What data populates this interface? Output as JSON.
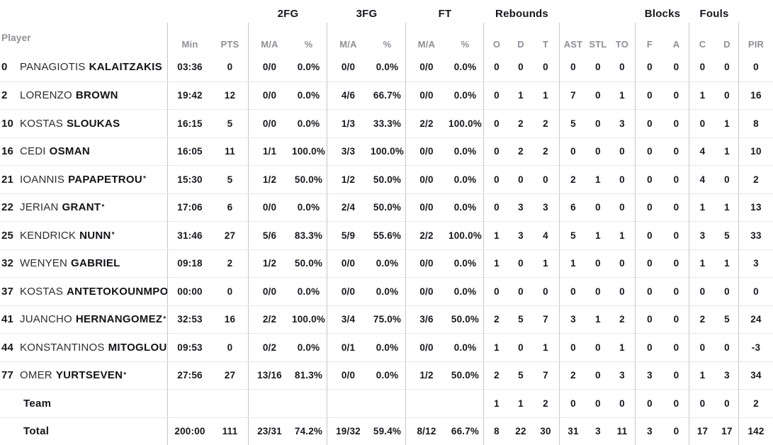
{
  "table": {
    "player_header": "Player",
    "group_headers": {
      "fg2": "2FG",
      "fg3": "3FG",
      "ft": "FT",
      "rebounds": "Rebounds",
      "blocks": "Blocks",
      "fouls": "Fouls"
    },
    "sub_headers": {
      "min": "Min",
      "pts": "PTS",
      "ma": "M/A",
      "pct": "%",
      "o": "O",
      "d": "D",
      "t": "T",
      "ast": "AST",
      "stl": "STL",
      "to": "TO",
      "f": "F",
      "a": "A",
      "c": "C",
      "pir": "PIR"
    }
  },
  "rows": [
    {
      "num": "0",
      "first": "PANAGIOTIS",
      "last": "KALAITZAKIS",
      "star": "",
      "min": "03:36",
      "pts": "0",
      "fg2ma": "0/0",
      "fg2pct": "0.0%",
      "fg3ma": "0/0",
      "fg3pct": "0.0%",
      "ftma": "0/0",
      "ftpct": "0.0%",
      "reb_o": "0",
      "reb_d": "0",
      "reb_t": "0",
      "ast": "0",
      "stl": "0",
      "to": "0",
      "blk_f": "0",
      "blk_a": "0",
      "foul_c": "0",
      "foul_d": "0",
      "pir": "0"
    },
    {
      "num": "2",
      "first": "LORENZO",
      "last": "BROWN",
      "star": "",
      "min": "19:42",
      "pts": "12",
      "fg2ma": "0/0",
      "fg2pct": "0.0%",
      "fg3ma": "4/6",
      "fg3pct": "66.7%",
      "ftma": "0/0",
      "ftpct": "0.0%",
      "reb_o": "0",
      "reb_d": "1",
      "reb_t": "1",
      "ast": "7",
      "stl": "0",
      "to": "1",
      "blk_f": "0",
      "blk_a": "0",
      "foul_c": "1",
      "foul_d": "0",
      "pir": "16"
    },
    {
      "num": "10",
      "first": "KOSTAS",
      "last": "SLOUKAS",
      "star": "",
      "min": "16:15",
      "pts": "5",
      "fg2ma": "0/0",
      "fg2pct": "0.0%",
      "fg3ma": "1/3",
      "fg3pct": "33.3%",
      "ftma": "2/2",
      "ftpct": "100.0%",
      "reb_o": "0",
      "reb_d": "2",
      "reb_t": "2",
      "ast": "5",
      "stl": "0",
      "to": "3",
      "blk_f": "0",
      "blk_a": "0",
      "foul_c": "0",
      "foul_d": "1",
      "pir": "8"
    },
    {
      "num": "16",
      "first": "CEDI",
      "last": "OSMAN",
      "star": "",
      "min": "16:05",
      "pts": "11",
      "fg2ma": "1/1",
      "fg2pct": "100.0%",
      "fg3ma": "3/3",
      "fg3pct": "100.0%",
      "ftma": "0/0",
      "ftpct": "0.0%",
      "reb_o": "0",
      "reb_d": "2",
      "reb_t": "2",
      "ast": "0",
      "stl": "0",
      "to": "0",
      "blk_f": "0",
      "blk_a": "0",
      "foul_c": "4",
      "foul_d": "1",
      "pir": "10"
    },
    {
      "num": "21",
      "first": "IOANNIS",
      "last": "PAPAPETROU",
      "star": "*",
      "min": "15:30",
      "pts": "5",
      "fg2ma": "1/2",
      "fg2pct": "50.0%",
      "fg3ma": "1/2",
      "fg3pct": "50.0%",
      "ftma": "0/0",
      "ftpct": "0.0%",
      "reb_o": "0",
      "reb_d": "0",
      "reb_t": "0",
      "ast": "2",
      "stl": "1",
      "to": "0",
      "blk_f": "0",
      "blk_a": "0",
      "foul_c": "4",
      "foul_d": "0",
      "pir": "2"
    },
    {
      "num": "22",
      "first": "JERIAN",
      "last": "GRANT",
      "star": "*",
      "min": "17:06",
      "pts": "6",
      "fg2ma": "0/0",
      "fg2pct": "0.0%",
      "fg3ma": "2/4",
      "fg3pct": "50.0%",
      "ftma": "0/0",
      "ftpct": "0.0%",
      "reb_o": "0",
      "reb_d": "3",
      "reb_t": "3",
      "ast": "6",
      "stl": "0",
      "to": "0",
      "blk_f": "0",
      "blk_a": "0",
      "foul_c": "1",
      "foul_d": "1",
      "pir": "13"
    },
    {
      "num": "25",
      "first": "KENDRICK",
      "last": "NUNN",
      "star": "*",
      "min": "31:46",
      "pts": "27",
      "fg2ma": "5/6",
      "fg2pct": "83.3%",
      "fg3ma": "5/9",
      "fg3pct": "55.6%",
      "ftma": "2/2",
      "ftpct": "100.0%",
      "reb_o": "1",
      "reb_d": "3",
      "reb_t": "4",
      "ast": "5",
      "stl": "1",
      "to": "1",
      "blk_f": "0",
      "blk_a": "0",
      "foul_c": "3",
      "foul_d": "5",
      "pir": "33"
    },
    {
      "num": "32",
      "first": "WENYEN",
      "last": "GABRIEL",
      "star": "",
      "min": "09:18",
      "pts": "2",
      "fg2ma": "1/2",
      "fg2pct": "50.0%",
      "fg3ma": "0/0",
      "fg3pct": "0.0%",
      "ftma": "0/0",
      "ftpct": "0.0%",
      "reb_o": "1",
      "reb_d": "0",
      "reb_t": "1",
      "ast": "1",
      "stl": "0",
      "to": "0",
      "blk_f": "0",
      "blk_a": "0",
      "foul_c": "1",
      "foul_d": "1",
      "pir": "3"
    },
    {
      "num": "37",
      "first": "KOSTAS",
      "last": "ANTETOKOUNMPO",
      "star": "",
      "min": "00:00",
      "pts": "0",
      "fg2ma": "0/0",
      "fg2pct": "0.0%",
      "fg3ma": "0/0",
      "fg3pct": "0.0%",
      "ftma": "0/0",
      "ftpct": "0.0%",
      "reb_o": "0",
      "reb_d": "0",
      "reb_t": "0",
      "ast": "0",
      "stl": "0",
      "to": "0",
      "blk_f": "0",
      "blk_a": "0",
      "foul_c": "0",
      "foul_d": "0",
      "pir": "0"
    },
    {
      "num": "41",
      "first": "JUANCHO",
      "last": "HERNANGOMEZ",
      "star": "*",
      "min": "32:53",
      "pts": "16",
      "fg2ma": "2/2",
      "fg2pct": "100.0%",
      "fg3ma": "3/4",
      "fg3pct": "75.0%",
      "ftma": "3/6",
      "ftpct": "50.0%",
      "reb_o": "2",
      "reb_d": "5",
      "reb_t": "7",
      "ast": "3",
      "stl": "1",
      "to": "2",
      "blk_f": "0",
      "blk_a": "0",
      "foul_c": "2",
      "foul_d": "5",
      "pir": "24"
    },
    {
      "num": "44",
      "first": "KONSTANTINOS",
      "last": "MITOGLOU",
      "star": "",
      "min": "09:53",
      "pts": "0",
      "fg2ma": "0/2",
      "fg2pct": "0.0%",
      "fg3ma": "0/1",
      "fg3pct": "0.0%",
      "ftma": "0/0",
      "ftpct": "0.0%",
      "reb_o": "1",
      "reb_d": "0",
      "reb_t": "1",
      "ast": "0",
      "stl": "0",
      "to": "1",
      "blk_f": "0",
      "blk_a": "0",
      "foul_c": "0",
      "foul_d": "0",
      "pir": "-3"
    },
    {
      "num": "77",
      "first": "OMER",
      "last": "YURTSEVEN",
      "star": "*",
      "min": "27:56",
      "pts": "27",
      "fg2ma": "13/16",
      "fg2pct": "81.3%",
      "fg3ma": "0/0",
      "fg3pct": "0.0%",
      "ftma": "1/2",
      "ftpct": "50.0%",
      "reb_o": "2",
      "reb_d": "5",
      "reb_t": "7",
      "ast": "2",
      "stl": "0",
      "to": "3",
      "blk_f": "3",
      "blk_a": "0",
      "foul_c": "1",
      "foul_d": "3",
      "pir": "34"
    },
    {
      "num": "",
      "first": "",
      "last": "Team",
      "star": "",
      "min": "",
      "pts": "",
      "fg2ma": "",
      "fg2pct": "",
      "fg3ma": "",
      "fg3pct": "",
      "ftma": "",
      "ftpct": "",
      "reb_o": "1",
      "reb_d": "1",
      "reb_t": "2",
      "ast": "0",
      "stl": "0",
      "to": "0",
      "blk_f": "0",
      "blk_a": "0",
      "foul_c": "0",
      "foul_d": "0",
      "pir": "2"
    },
    {
      "num": "",
      "first": "",
      "last": "Total",
      "star": "",
      "min": "200:00",
      "pts": "111",
      "fg2ma": "23/31",
      "fg2pct": "74.2%",
      "fg3ma": "19/32",
      "fg3pct": "59.4%",
      "ftma": "8/12",
      "ftpct": "66.7%",
      "reb_o": "8",
      "reb_d": "22",
      "reb_t": "30",
      "ast": "31",
      "stl": "3",
      "to": "11",
      "blk_f": "3",
      "blk_a": "0",
      "foul_c": "17",
      "foul_d": "17",
      "pir": "142"
    }
  ]
}
